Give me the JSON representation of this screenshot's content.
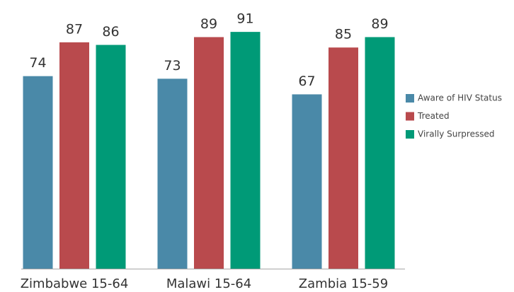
{
  "chart_data": {
    "type": "bar",
    "categories": [
      "Zimbabwe 15-64",
      "Malawi 15-64",
      "Zambia 15-59"
    ],
    "series": [
      {
        "name": "Aware of HIV Status",
        "color": "#4a89a8",
        "values": [
          74,
          73,
          67
        ]
      },
      {
        "name": "Treated",
        "color": "#b94a4d",
        "values": [
          87,
          89,
          85
        ]
      },
      {
        "name": "Virally Surpressed",
        "color": "#009a77",
        "values": [
          86,
          91,
          89
        ]
      }
    ],
    "ylim": [
      0,
      100
    ],
    "legend": "right"
  }
}
